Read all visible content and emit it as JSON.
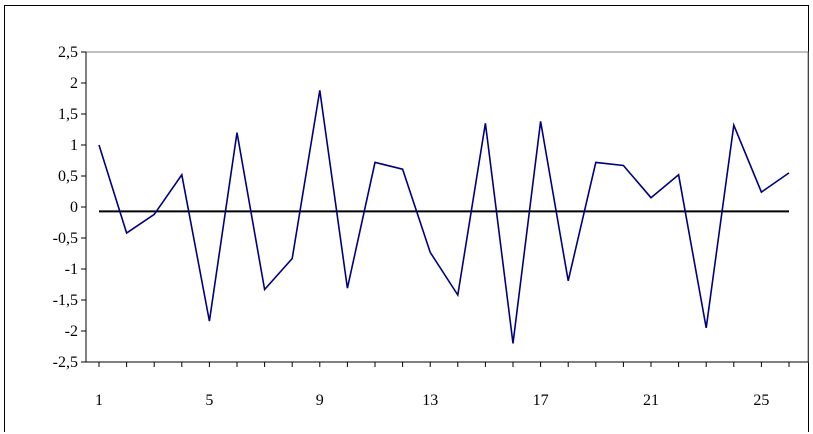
{
  "chart_data": {
    "type": "line",
    "title": "",
    "xlabel": "",
    "ylabel": "",
    "x": [
      1,
      2,
      3,
      4,
      5,
      6,
      7,
      8,
      9,
      10,
      11,
      12,
      13,
      14,
      15,
      16,
      17,
      18,
      19,
      20,
      21,
      22,
      23,
      24,
      25,
      26
    ],
    "series": [
      {
        "values": [
          1.0,
          -0.42,
          -0.12,
          0.52,
          -1.84,
          1.2,
          -1.33,
          -0.83,
          1.88,
          -1.31,
          0.72,
          0.61,
          -0.73,
          -1.42,
          1.35,
          -2.2,
          1.38,
          -1.19,
          0.72,
          0.67,
          0.15,
          0.52,
          -1.95,
          1.32,
          0.24,
          0.55
        ],
        "color": "#00007f"
      }
    ],
    "reference_line": {
      "y": -0.07,
      "color": "#000000"
    },
    "ylim": [
      -2.5,
      2.5
    ],
    "y_ticks": [
      2.5,
      2,
      1.5,
      1,
      0.5,
      0,
      -0.5,
      -1,
      -1.5,
      -2,
      -2.5
    ],
    "y_tick_labels": [
      "2,5",
      "2",
      "1,5",
      "1",
      "0,5",
      "0",
      "-0,5",
      "-1",
      "-1,5",
      "-2",
      "-2,5"
    ],
    "x_tick_values": [
      1,
      5,
      9,
      13,
      17,
      21,
      25
    ],
    "x_tick_labels": [
      "1",
      "5",
      "9",
      "13",
      "17",
      "21",
      "25"
    ],
    "grid": false,
    "legend": "none"
  }
}
